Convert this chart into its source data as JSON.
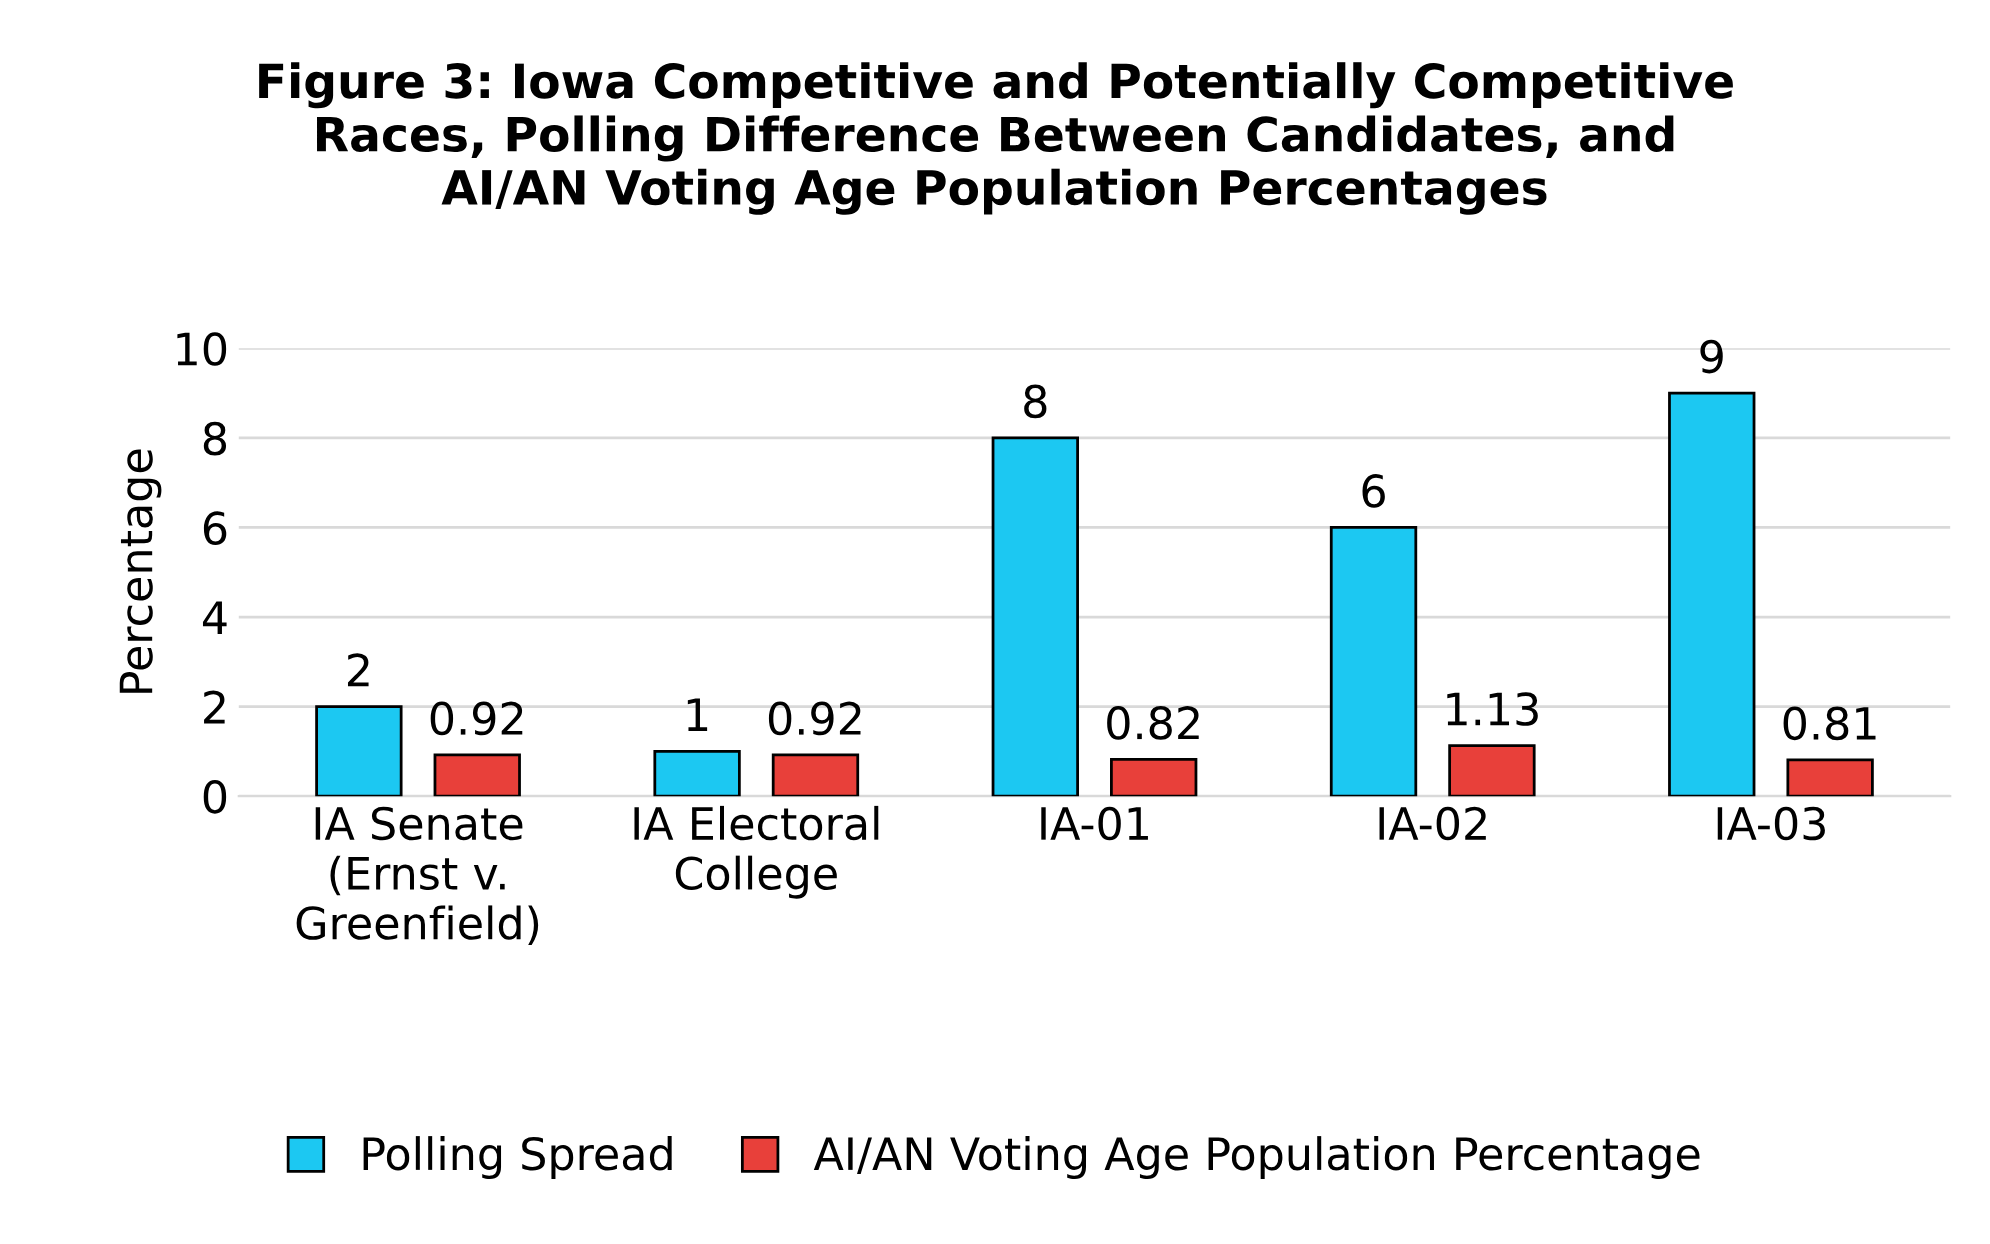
{
  "chart_data": {
    "type": "bar",
    "title": "Figure 3: Iowa Competitive and Potentially Competitive\nRaces, Polling Difference Between Candidates, and\nAI/AN Voting Age Population Percentages",
    "ylabel": "Percentage",
    "categories": [
      "IA Senate\n(Ernst v.\nGreenfield)",
      "IA Electoral\nCollege",
      "IA-01",
      "IA-02",
      "IA-03"
    ],
    "series": [
      {
        "name": "Polling Spread",
        "color": "#1cc8f2",
        "values": [
          2,
          1,
          8,
          6,
          9
        ]
      },
      {
        "name": "AI/AN Voting Age Population Percentage",
        "color": "#e8403a",
        "values": [
          0.92,
          0.92,
          0.82,
          1.13,
          0.81
        ]
      }
    ],
    "ylim": [
      0,
      10
    ],
    "yticks": [
      0,
      2,
      4,
      6,
      8,
      10
    ],
    "grid": "y",
    "legend": "bottom",
    "data_labels": true
  }
}
